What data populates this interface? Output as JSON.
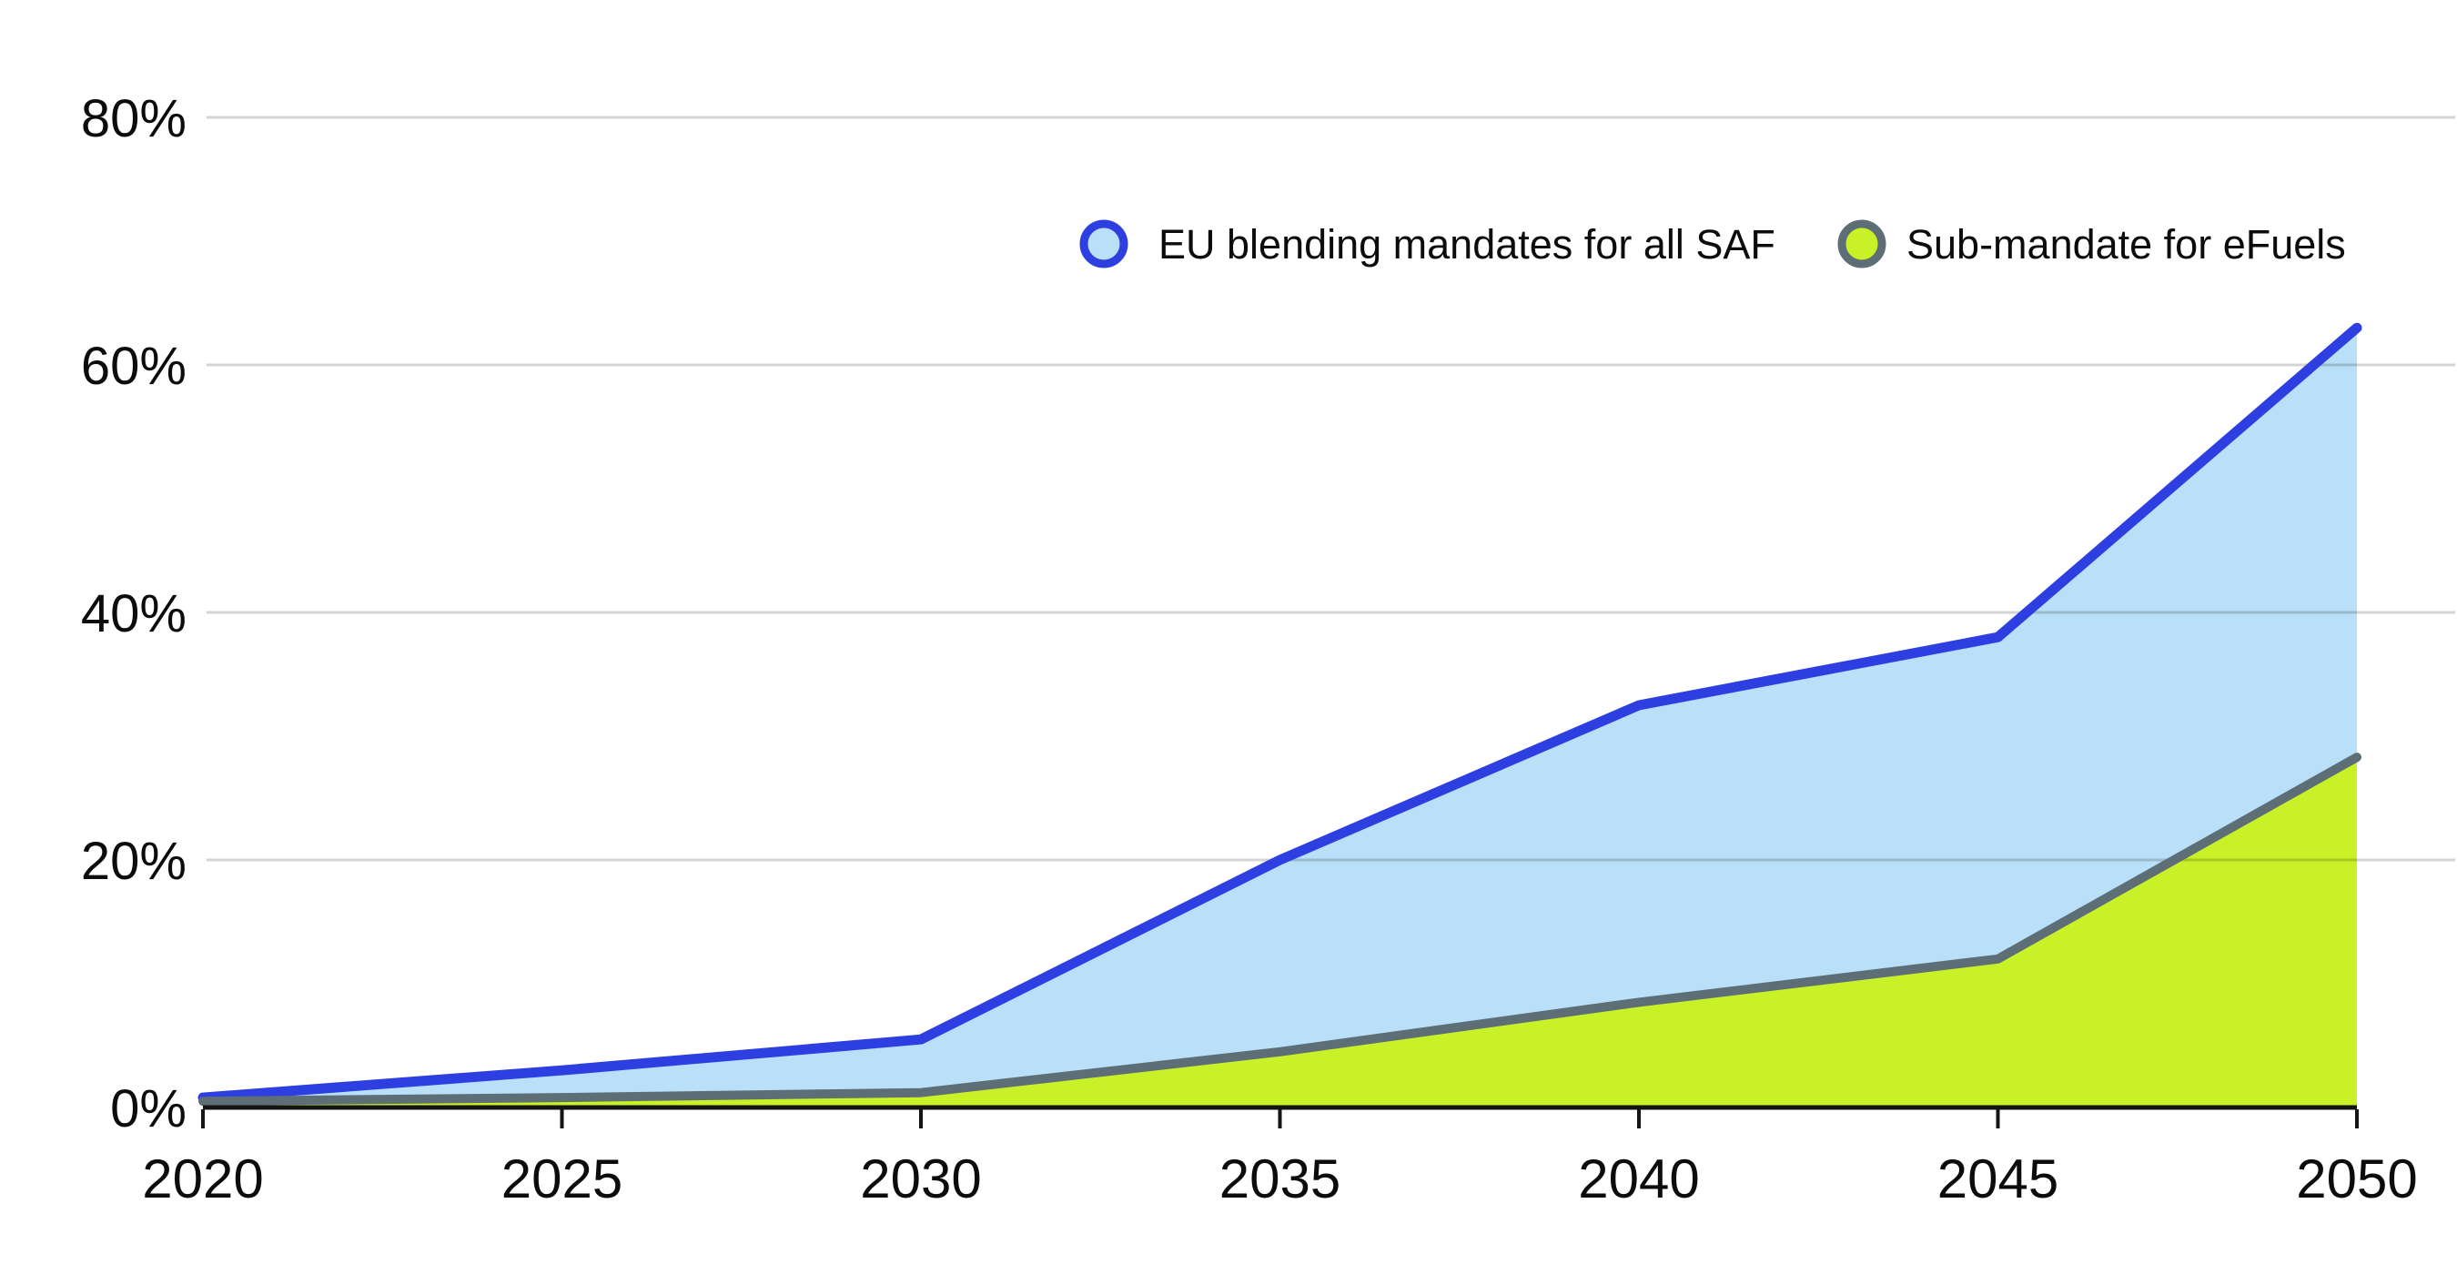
{
  "page": {
    "background": "#ffffff",
    "title": ""
  },
  "chart_data": {
    "type": "area",
    "title": "",
    "xlabel": "",
    "ylabel": "",
    "x": [
      2020,
      2025,
      2030,
      2035,
      2040,
      2045,
      2050
    ],
    "x_tick_labels": [
      "2020",
      "2025",
      "2030",
      "2035",
      "2040",
      "2045",
      "2050"
    ],
    "y_ticks": [
      0,
      20,
      40,
      60,
      80
    ],
    "y_tick_labels": [
      "0%",
      "20%",
      "40%",
      "60%",
      "80%"
    ],
    "ylim": [
      0,
      80
    ],
    "grid": true,
    "legend_position": "top-right-inside",
    "series": [
      {
        "name": "EU blending mandates for all SAF",
        "values": [
          0.8,
          3,
          5.5,
          20,
          32.5,
          38,
          63
        ],
        "line_color": "#2e3fe2",
        "fill_color": "#b9e0f8",
        "marker": "circle"
      },
      {
        "name": "Sub-mandate for eFuels",
        "values": [
          0.5,
          0.8,
          1.2,
          4.5,
          8.5,
          12,
          28.3
        ],
        "line_color": "#5d6e76",
        "fill_color": "#c9f128",
        "marker": "circle"
      }
    ]
  },
  "colors": {
    "grid": "rgba(0,0,0,0.17)",
    "axis": "#141414",
    "tick": "#141414",
    "label_text": "#0c0c0c"
  }
}
